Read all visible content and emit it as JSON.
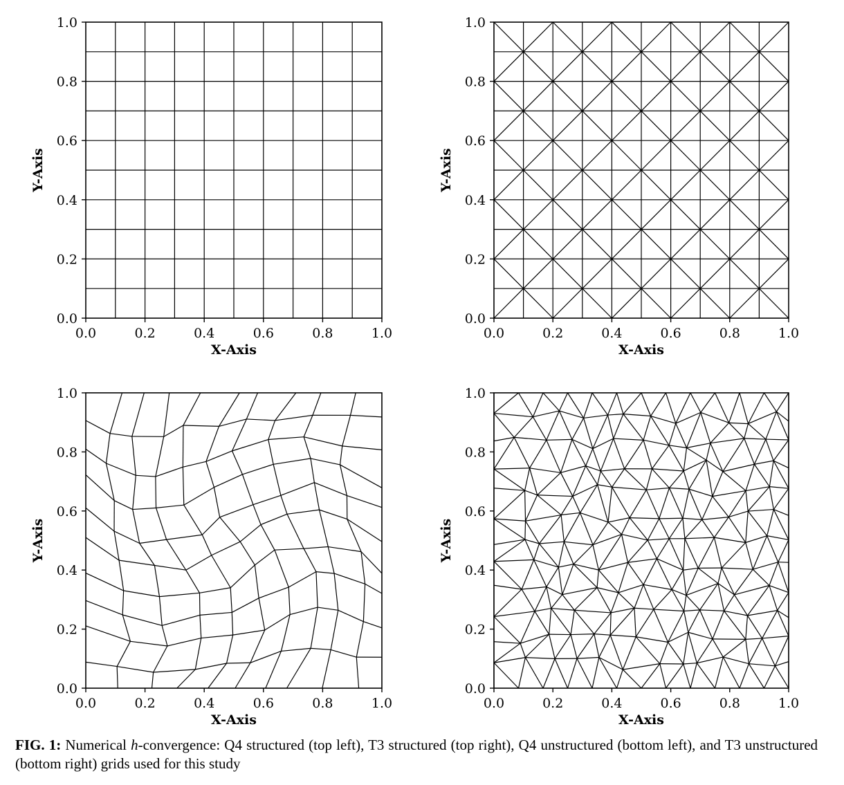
{
  "panels": [
    {
      "id": "q4-structured",
      "mesh": "q4-structured",
      "xlabel": "X-Axis",
      "ylabel": "Y-Axis",
      "xticks": [
        "0.0",
        "0.2",
        "0.4",
        "0.6",
        "0.8",
        "1.0"
      ],
      "yticks": [
        "0.0",
        "0.2",
        "0.4",
        "0.6",
        "0.8",
        "1.0"
      ],
      "xlim": [
        0,
        1
      ],
      "ylim": [
        0,
        1
      ],
      "divisions": 10
    },
    {
      "id": "t3-structured",
      "mesh": "t3-structured",
      "xlabel": "X-Axis",
      "ylabel": "Y-Axis",
      "xticks": [
        "0.0",
        "0.2",
        "0.4",
        "0.6",
        "0.8",
        "1.0"
      ],
      "yticks": [
        "0.0",
        "0.2",
        "0.4",
        "0.6",
        "0.8",
        "1.0"
      ],
      "xlim": [
        0,
        1
      ],
      "ylim": [
        0,
        1
      ],
      "divisions": 10
    },
    {
      "id": "q4-unstructured",
      "mesh": "q4-unstructured",
      "xlabel": "X-Axis",
      "ylabel": "Y-Axis",
      "xticks": [
        "0.0",
        "0.2",
        "0.4",
        "0.6",
        "0.8",
        "1.0"
      ],
      "yticks": [
        "0.0",
        "0.2",
        "0.4",
        "0.6",
        "0.8",
        "1.0"
      ],
      "xlim": [
        0,
        1
      ],
      "ylim": [
        0,
        1
      ],
      "divisions": 10
    },
    {
      "id": "t3-unstructured",
      "mesh": "t3-unstructured",
      "xlabel": "X-Axis",
      "ylabel": "Y-Axis",
      "xticks": [
        "0.0",
        "0.2",
        "0.4",
        "0.6",
        "0.8",
        "1.0"
      ],
      "yticks": [
        "0.0",
        "0.2",
        "0.4",
        "0.6",
        "0.8",
        "1.0"
      ],
      "xlim": [
        0,
        1
      ],
      "ylim": [
        0,
        1
      ],
      "divisions": 10
    }
  ],
  "caption": {
    "label": "FIG. 1:",
    "pre": " Numerical ",
    "hvar": "h",
    "post": "-convergence: Q4 structured (top left), T3 structured (top right), Q4 unstructured (bottom left), and T3 unstructured (bottom right) grids used for this study"
  }
}
